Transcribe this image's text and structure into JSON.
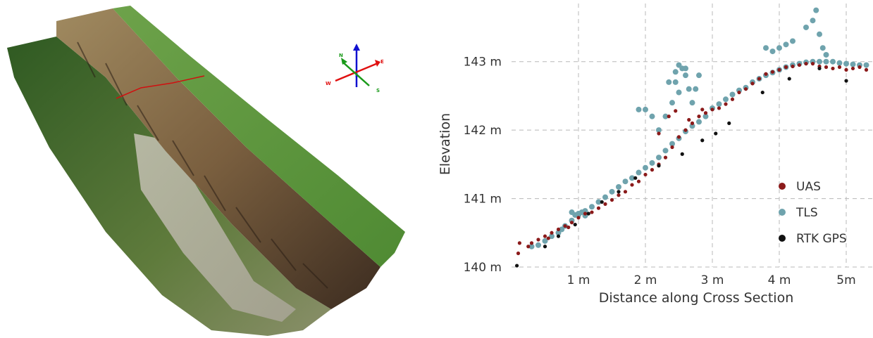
{
  "compass": {
    "labels": {
      "north": "N",
      "east": "E",
      "west": "W",
      "south": "S"
    },
    "colors": {
      "north": "#1a9a1a",
      "east": "#e01010",
      "west": "#e01010",
      "south": "#1a9a1a",
      "up": "#1010d0"
    }
  },
  "chart_data": {
    "type": "scatter",
    "title": "",
    "xlabel": "Distance along Cross Section",
    "ylabel": "Elevation",
    "xlim": [
      0,
      5.4
    ],
    "ylim": [
      140,
      143.9
    ],
    "x_ticks": [
      {
        "value": 1,
        "label": "1 m"
      },
      {
        "value": 2,
        "label": "2 m"
      },
      {
        "value": 3,
        "label": "3 m"
      },
      {
        "value": 4,
        "label": "4 m"
      },
      {
        "value": 5,
        "label": "5m"
      }
    ],
    "y_ticks": [
      {
        "value": 140,
        "label": "140 m"
      },
      {
        "value": 141,
        "label": "141 m"
      },
      {
        "value": 142,
        "label": "142 m"
      },
      {
        "value": 143,
        "label": "143 m"
      }
    ],
    "grid": true,
    "legend_position": "right",
    "legend": [
      {
        "name": "UAS",
        "color": "#8b1a1a"
      },
      {
        "name": "TLS",
        "color": "#6fa3ad"
      },
      {
        "name": "RTK GPS",
        "color": "#111111"
      }
    ],
    "series": [
      {
        "name": "TLS",
        "color": "#6fa3ad",
        "x": [
          0.3,
          0.4,
          0.5,
          0.6,
          0.7,
          0.75,
          0.8,
          0.9,
          1.0,
          1.1,
          1.2,
          1.3,
          1.4,
          1.5,
          1.6,
          1.7,
          1.8,
          1.9,
          2.0,
          2.1,
          2.2,
          2.3,
          2.4,
          2.5,
          2.6,
          2.7,
          2.8,
          2.9,
          3.0,
          3.1,
          3.2,
          3.3,
          3.4,
          3.5,
          3.6,
          3.7,
          3.8,
          3.9,
          4.0,
          4.1,
          4.2,
          4.3,
          4.4,
          4.5,
          4.6,
          4.7,
          4.8,
          4.9,
          5.0,
          5.1,
          5.2,
          5.3,
          2.35,
          2.45,
          2.55,
          2.6,
          2.65,
          2.5,
          2.4,
          2.3,
          2.2,
          2.1,
          2.0,
          1.9,
          2.7,
          2.75,
          2.8,
          2.6,
          2.5,
          2.45,
          3.8,
          3.9,
          4.0,
          4.1,
          4.2,
          4.4,
          4.5,
          4.55,
          4.6,
          4.65,
          4.7,
          1.0,
          1.05,
          1.1,
          0.9,
          0.95
        ],
        "y": [
          140.3,
          140.32,
          140.38,
          140.45,
          140.5,
          140.55,
          140.6,
          140.68,
          140.76,
          140.82,
          140.88,
          140.95,
          141.02,
          141.1,
          141.17,
          141.25,
          141.3,
          141.38,
          141.45,
          141.52,
          141.6,
          141.7,
          141.8,
          141.88,
          141.98,
          142.06,
          142.12,
          142.2,
          142.32,
          142.38,
          142.45,
          142.52,
          142.58,
          142.62,
          142.7,
          142.75,
          142.8,
          142.84,
          142.88,
          142.92,
          142.95,
          142.97,
          142.99,
          143.0,
          143.0,
          143.0,
          143.0,
          142.98,
          142.97,
          142.96,
          142.95,
          142.95,
          142.7,
          142.85,
          142.9,
          142.8,
          142.6,
          142.55,
          142.4,
          142.2,
          142.0,
          142.2,
          142.3,
          142.3,
          142.4,
          142.6,
          142.8,
          142.9,
          142.95,
          142.7,
          143.2,
          143.15,
          143.2,
          143.25,
          143.3,
          143.5,
          143.6,
          143.75,
          143.4,
          143.2,
          143.1,
          140.78,
          140.8,
          140.75,
          140.8,
          140.76
        ]
      },
      {
        "name": "UAS",
        "color": "#8b1a1a",
        "x": [
          0.1,
          0.12,
          0.25,
          0.3,
          0.4,
          0.5,
          0.55,
          0.6,
          0.7,
          0.8,
          0.85,
          0.9,
          1.0,
          1.1,
          1.2,
          1.3,
          1.4,
          1.5,
          1.6,
          1.7,
          1.8,
          1.9,
          2.0,
          2.1,
          2.2,
          2.3,
          2.4,
          2.5,
          2.6,
          2.7,
          2.8,
          2.9,
          3.0,
          3.1,
          3.2,
          3.3,
          3.4,
          3.5,
          3.6,
          3.7,
          3.8,
          3.9,
          4.0,
          4.1,
          4.2,
          4.3,
          4.4,
          4.5,
          4.6,
          4.7,
          4.8,
          4.9,
          5.0,
          5.1,
          5.2,
          5.3,
          2.35,
          2.45,
          2.2,
          2.65,
          2.85
        ],
        "y": [
          140.2,
          140.35,
          140.3,
          140.35,
          140.4,
          140.45,
          140.42,
          140.5,
          140.55,
          140.6,
          140.58,
          140.65,
          140.72,
          140.78,
          140.8,
          140.86,
          140.92,
          140.98,
          141.05,
          141.1,
          141.2,
          141.25,
          141.35,
          141.42,
          141.5,
          141.6,
          141.75,
          141.9,
          142.0,
          142.1,
          142.2,
          142.25,
          142.3,
          142.32,
          142.38,
          142.45,
          142.55,
          142.6,
          142.68,
          142.75,
          142.82,
          142.85,
          142.88,
          142.92,
          142.93,
          142.95,
          142.97,
          142.97,
          142.93,
          142.92,
          142.9,
          142.92,
          142.88,
          142.9,
          142.92,
          142.88,
          142.2,
          142.28,
          141.95,
          142.15,
          142.3
        ]
      },
      {
        "name": "RTK GPS",
        "color": "#111111",
        "x": [
          0.08,
          0.5,
          0.7,
          0.95,
          1.15,
          1.35,
          1.6,
          1.85,
          2.2,
          2.55,
          2.85,
          3.05,
          3.25,
          3.75,
          4.15,
          4.6,
          5.0
        ],
        "y": [
          140.02,
          140.3,
          140.45,
          140.62,
          140.78,
          140.95,
          141.1,
          141.3,
          141.48,
          141.65,
          141.85,
          141.95,
          142.1,
          142.55,
          142.75,
          142.9,
          142.72
        ]
      }
    ]
  }
}
